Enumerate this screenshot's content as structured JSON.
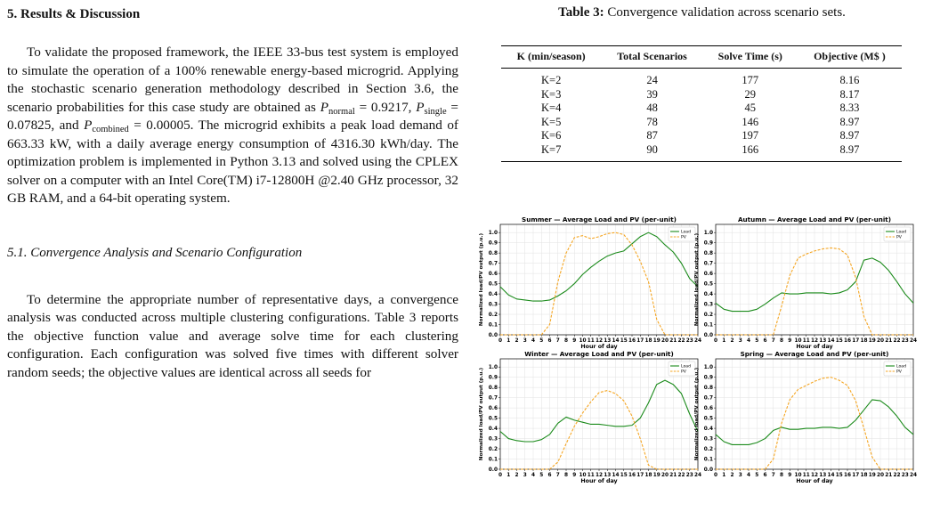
{
  "section": {
    "number": "5.",
    "title": "Results & Discussion"
  },
  "para1": {
    "t1": "To validate the proposed framework, the IEEE 33-bus test system is employed to simulate the operation of a 100% renewable energy-based microgrid. Applying the stochastic scenario generation methodology described in Section 3.6, the scenario probabilities for this case study are obtained as ",
    "p1_sym": "P",
    "p1_sub": "normal",
    "p1_val": " = 0.9217, ",
    "p2_sym": "P",
    "p2_sub": "single",
    "p2_val": " = 0.07825, and ",
    "p3_sym": "P",
    "p3_sub": "combined",
    "p3_val": " = 0.00005.",
    "t2": " The microgrid exhibits a peak load demand of 663.33 kW, with a daily average energy consumption of 4316.30 kWh/day. The optimization problem is implemented in Python 3.13 and solved using the CPLEX solver on a computer with an Intel Core(TM) i7-12800H @2.40 GHz processor, 32 GB RAM, and a 64-bit operating system."
  },
  "subsection": {
    "title": "5.1. Convergence Analysis and Scenario Configuration"
  },
  "para2": "To determine the appropriate number of representative days, a convergence analysis was conducted across multiple clustering configurations. Table 3 reports the objective function value and average solve time for each clustering configuration. Each configuration was solved five times with different solver random seeds; the objective values are identical across all seeds for",
  "table": {
    "caption_label": "Table 3:",
    "caption_text": " Convergence validation across scenario sets.",
    "headers": [
      "K (min/season)",
      "Total Scenarios",
      "Solve Time (s)",
      "Objective (M$ )"
    ],
    "rows": [
      [
        "K=2",
        "24",
        "177",
        "8.16"
      ],
      [
        "K=3",
        "39",
        "29",
        "8.17"
      ],
      [
        "K=4",
        "48",
        "45",
        "8.33"
      ],
      [
        "K=5",
        "78",
        "146",
        "8.97"
      ],
      [
        "K=6",
        "87",
        "197",
        "8.97"
      ],
      [
        "K=7",
        "90",
        "166",
        "8.97"
      ]
    ]
  },
  "chart_data": [
    {
      "type": "line",
      "title": "Summer — Average Load and PV (per-unit)",
      "xlabel": "Hour of day",
      "ylabel": "Normalized load/PV output (p.u.)",
      "xlim": [
        0,
        24
      ],
      "ylim": [
        0,
        1.08
      ],
      "grid": true,
      "legend": "top-right",
      "x": [
        0,
        1,
        2,
        3,
        4,
        5,
        6,
        7,
        8,
        9,
        10,
        11,
        12,
        13,
        14,
        15,
        16,
        17,
        18,
        19,
        20,
        21,
        22,
        23,
        24
      ],
      "series": [
        {
          "name": "Load",
          "color": "#1a8a1a",
          "dash": false,
          "values": [
            0.47,
            0.39,
            0.35,
            0.34,
            0.33,
            0.33,
            0.34,
            0.38,
            0.43,
            0.5,
            0.59,
            0.66,
            0.72,
            0.77,
            0.8,
            0.82,
            0.89,
            0.96,
            1.0,
            0.96,
            0.88,
            0.81,
            0.7,
            0.55,
            0.47
          ]
        },
        {
          "name": "PV",
          "color": "#f5a623",
          "dash": true,
          "values": [
            0,
            0,
            0,
            0,
            0,
            0,
            0.1,
            0.52,
            0.8,
            0.95,
            0.97,
            0.94,
            0.96,
            0.99,
            1.0,
            0.98,
            0.88,
            0.72,
            0.52,
            0.15,
            0,
            0,
            0,
            0,
            0
          ]
        }
      ],
      "yticks": [
        "0.0",
        "0.1",
        "0.2",
        "0.3",
        "0.4",
        "0.5",
        "0.6",
        "0.7",
        "0.8",
        "0.9",
        "1.0"
      ],
      "xticks": [
        "0",
        "1",
        "2",
        "3",
        "4",
        "5",
        "6",
        "7",
        "8",
        "9",
        "10",
        "11",
        "12",
        "13",
        "14",
        "15",
        "16",
        "17",
        "18",
        "19",
        "20",
        "21",
        "22",
        "23",
        "24"
      ]
    },
    {
      "type": "line",
      "title": "Autumn — Average Load and PV (per-unit)",
      "xlabel": "Hour of day",
      "ylabel": "Normalized load/PV output (p.u.)",
      "xlim": [
        0,
        24
      ],
      "ylim": [
        0,
        1.08
      ],
      "grid": true,
      "legend": "top-right",
      "x": [
        0,
        1,
        2,
        3,
        4,
        5,
        6,
        7,
        8,
        9,
        10,
        11,
        12,
        13,
        14,
        15,
        16,
        17,
        18,
        19,
        20,
        21,
        22,
        23,
        24
      ],
      "series": [
        {
          "name": "Load",
          "color": "#1a8a1a",
          "dash": false,
          "values": [
            0.31,
            0.25,
            0.23,
            0.23,
            0.23,
            0.25,
            0.3,
            0.36,
            0.41,
            0.4,
            0.4,
            0.41,
            0.41,
            0.41,
            0.4,
            0.41,
            0.44,
            0.52,
            0.73,
            0.75,
            0.71,
            0.63,
            0.52,
            0.4,
            0.31
          ]
        },
        {
          "name": "PV",
          "color": "#f5a623",
          "dash": true,
          "values": [
            0,
            0,
            0,
            0,
            0,
            0,
            0,
            0,
            0.28,
            0.58,
            0.75,
            0.79,
            0.82,
            0.84,
            0.85,
            0.84,
            0.78,
            0.56,
            0.18,
            0,
            0,
            0,
            0,
            0,
            0
          ]
        }
      ],
      "yticks": [
        "0.0",
        "0.1",
        "0.2",
        "0.3",
        "0.4",
        "0.5",
        "0.6",
        "0.7",
        "0.8",
        "0.9",
        "1.0"
      ],
      "xticks": [
        "0",
        "1",
        "2",
        "3",
        "4",
        "5",
        "6",
        "7",
        "8",
        "9",
        "10",
        "11",
        "12",
        "13",
        "14",
        "15",
        "16",
        "17",
        "18",
        "19",
        "20",
        "21",
        "22",
        "23",
        "24"
      ]
    },
    {
      "type": "line",
      "title": "Winter — Average Load and PV (per-unit)",
      "xlabel": "Hour of day",
      "ylabel": "Normalized load/PV output (p.u.)",
      "xlim": [
        0,
        24
      ],
      "ylim": [
        0,
        1.08
      ],
      "grid": true,
      "legend": "top-right",
      "x": [
        0,
        1,
        2,
        3,
        4,
        5,
        6,
        7,
        8,
        9,
        10,
        11,
        12,
        13,
        14,
        15,
        16,
        17,
        18,
        19,
        20,
        21,
        22,
        23,
        24
      ],
      "series": [
        {
          "name": "Load",
          "color": "#1a8a1a",
          "dash": false,
          "values": [
            0.37,
            0.3,
            0.28,
            0.27,
            0.27,
            0.29,
            0.34,
            0.45,
            0.51,
            0.48,
            0.46,
            0.44,
            0.44,
            0.43,
            0.42,
            0.42,
            0.43,
            0.5,
            0.65,
            0.83,
            0.87,
            0.83,
            0.74,
            0.54,
            0.37
          ]
        },
        {
          "name": "PV",
          "color": "#f5a623",
          "dash": true,
          "values": [
            0,
            0,
            0,
            0,
            0,
            0,
            0,
            0.07,
            0.25,
            0.42,
            0.55,
            0.66,
            0.75,
            0.77,
            0.74,
            0.67,
            0.52,
            0.3,
            0.04,
            0,
            0,
            0,
            0,
            0,
            0
          ]
        }
      ],
      "yticks": [
        "0.0",
        "0.1",
        "0.2",
        "0.3",
        "0.4",
        "0.5",
        "0.6",
        "0.7",
        "0.8",
        "0.9",
        "1.0"
      ],
      "xticks": [
        "0",
        "1",
        "2",
        "3",
        "4",
        "5",
        "6",
        "7",
        "8",
        "9",
        "10",
        "11",
        "12",
        "13",
        "14",
        "15",
        "16",
        "17",
        "18",
        "19",
        "20",
        "21",
        "22",
        "23",
        "24"
      ]
    },
    {
      "type": "line",
      "title": "Spring — Average Load and PV (per-unit)",
      "xlabel": "Hour of day",
      "ylabel": "Normalized load/PV output (p.u.)",
      "xlim": [
        0,
        24
      ],
      "ylim": [
        0,
        1.08
      ],
      "grid": true,
      "legend": "top-right",
      "x": [
        0,
        1,
        2,
        3,
        4,
        5,
        6,
        7,
        8,
        9,
        10,
        11,
        12,
        13,
        14,
        15,
        16,
        17,
        18,
        19,
        20,
        21,
        22,
        23,
        24
      ],
      "series": [
        {
          "name": "Load",
          "color": "#1a8a1a",
          "dash": false,
          "values": [
            0.34,
            0.27,
            0.24,
            0.24,
            0.24,
            0.26,
            0.3,
            0.38,
            0.41,
            0.39,
            0.39,
            0.4,
            0.4,
            0.41,
            0.41,
            0.4,
            0.41,
            0.48,
            0.58,
            0.68,
            0.67,
            0.61,
            0.52,
            0.41,
            0.34
          ]
        },
        {
          "name": "PV",
          "color": "#f5a623",
          "dash": true,
          "values": [
            0,
            0,
            0,
            0,
            0,
            0,
            0,
            0.1,
            0.45,
            0.68,
            0.78,
            0.82,
            0.86,
            0.89,
            0.9,
            0.87,
            0.82,
            0.67,
            0.4,
            0.12,
            0,
            0,
            0,
            0,
            0
          ]
        }
      ],
      "yticks": [
        "0.0",
        "0.1",
        "0.2",
        "0.3",
        "0.4",
        "0.5",
        "0.6",
        "0.7",
        "0.8",
        "0.9",
        "1.0"
      ],
      "xticks": [
        "0",
        "1",
        "2",
        "3",
        "4",
        "5",
        "6",
        "7",
        "8",
        "9",
        "10",
        "11",
        "12",
        "13",
        "14",
        "15",
        "16",
        "17",
        "18",
        "19",
        "20",
        "21",
        "22",
        "23",
        "24"
      ]
    }
  ]
}
